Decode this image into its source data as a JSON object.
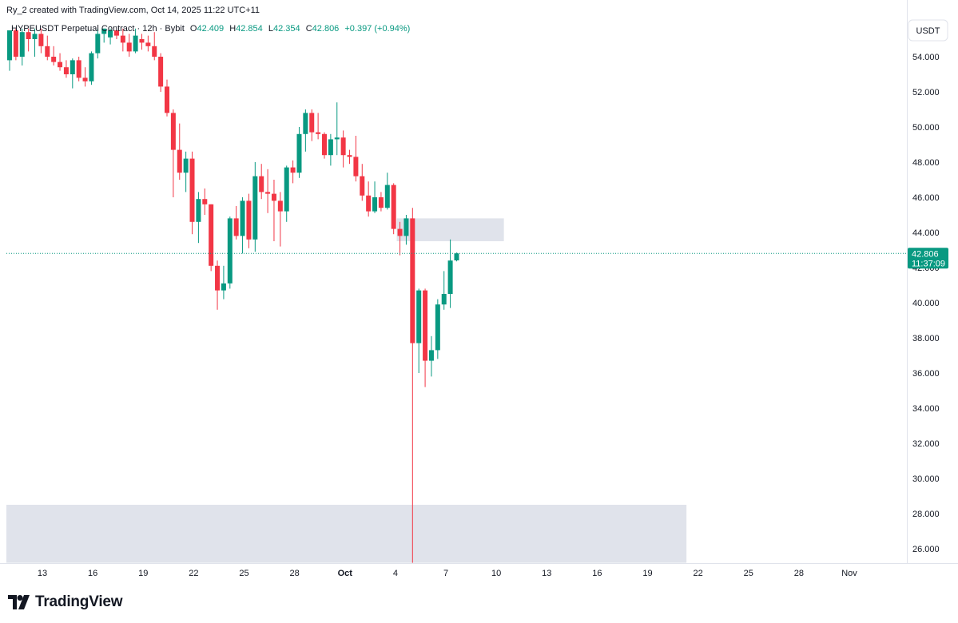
{
  "created_line": "Ry_2 created with TradingView.com, Oct 14, 2025 11:22 UTC+11",
  "legend": {
    "symbol": "HYPEUSDT Perpetual Contract · 12h · Bybit",
    "o_label": "O",
    "o": "42.409",
    "h_label": "H",
    "h": "42.854",
    "l_label": "L",
    "l": "42.354",
    "c_label": "C",
    "c": "42.806",
    "change": "+0.397 (+0.94%)"
  },
  "currency_button": "USDT",
  "price_tag": {
    "price": "42.806",
    "countdown": "11:37:09"
  },
  "brand": "TradingView",
  "colors": {
    "up": "#089981",
    "down": "#f23645",
    "zone": "#e0e3eb",
    "last_line": "#089981"
  },
  "chart_data": {
    "type": "candlestick",
    "timeframe": "12h",
    "yrange": [
      25,
      55.5
    ],
    "y_ticks": [
      "54.000",
      "52.000",
      "50.000",
      "48.000",
      "46.000",
      "44.000",
      "42.000",
      "40.000",
      "38.000",
      "36.000",
      "34.000",
      "32.000",
      "30.000",
      "28.000",
      "26.000"
    ],
    "x_labels": [
      "13",
      "16",
      "19",
      "22",
      "25",
      "28",
      "Oct",
      "4",
      "7",
      "10",
      "13",
      "16",
      "19",
      "22",
      "25",
      "28",
      "Nov"
    ],
    "last_price": 42.806,
    "zones": [
      {
        "x_start_index": 62,
        "x_end_index": 78,
        "low": 43.5,
        "high": 44.8
      },
      {
        "x_start_index": 0,
        "x_end_index": 107,
        "low": 25.2,
        "high": 28.5
      }
    ],
    "candles": [
      {
        "o": 53.8,
        "h": 55.5,
        "l": 53.2,
        "c": 55.5
      },
      {
        "o": 55.5,
        "h": 55.6,
        "l": 53.8,
        "c": 54.0
      },
      {
        "o": 54.0,
        "h": 55.6,
        "l": 53.5,
        "c": 55.4
      },
      {
        "o": 55.4,
        "h": 55.6,
        "l": 54.3,
        "c": 55.0
      },
      {
        "o": 55.0,
        "h": 55.6,
        "l": 54.0,
        "c": 55.3
      },
      {
        "o": 55.3,
        "h": 55.6,
        "l": 54.2,
        "c": 54.6
      },
      {
        "o": 54.6,
        "h": 55.2,
        "l": 53.8,
        "c": 54.0
      },
      {
        "o": 54.0,
        "h": 54.6,
        "l": 53.5,
        "c": 53.7
      },
      {
        "o": 53.7,
        "h": 54.2,
        "l": 53.2,
        "c": 53.4
      },
      {
        "o": 53.4,
        "h": 53.8,
        "l": 52.8,
        "c": 53.0
      },
      {
        "o": 53.0,
        "h": 53.9,
        "l": 52.2,
        "c": 53.8
      },
      {
        "o": 53.8,
        "h": 54.0,
        "l": 52.6,
        "c": 52.8
      },
      {
        "o": 52.8,
        "h": 53.4,
        "l": 52.3,
        "c": 52.6
      },
      {
        "o": 52.6,
        "h": 54.3,
        "l": 52.4,
        "c": 54.2
      },
      {
        "o": 54.2,
        "h": 55.6,
        "l": 53.9,
        "c": 55.3
      },
      {
        "o": 55.3,
        "h": 55.6,
        "l": 54.8,
        "c": 55.6
      },
      {
        "o": 55.1,
        "h": 55.6,
        "l": 54.7,
        "c": 55.5
      },
      {
        "o": 55.5,
        "h": 55.6,
        "l": 55.0,
        "c": 55.2
      },
      {
        "o": 55.2,
        "h": 55.6,
        "l": 54.3,
        "c": 54.8
      },
      {
        "o": 54.8,
        "h": 55.3,
        "l": 54.0,
        "c": 54.3
      },
      {
        "o": 54.3,
        "h": 55.6,
        "l": 54.2,
        "c": 55.2
      },
      {
        "o": 55.0,
        "h": 55.3,
        "l": 54.4,
        "c": 54.8
      },
      {
        "o": 54.8,
        "h": 55.2,
        "l": 54.3,
        "c": 54.6
      },
      {
        "o": 54.6,
        "h": 55.4,
        "l": 53.8,
        "c": 54.0
      },
      {
        "o": 54.0,
        "h": 54.2,
        "l": 52.0,
        "c": 52.3
      },
      {
        "o": 52.3,
        "h": 52.7,
        "l": 50.6,
        "c": 50.8
      },
      {
        "o": 50.8,
        "h": 51.0,
        "l": 46.0,
        "c": 48.7
      },
      {
        "o": 48.7,
        "h": 50.2,
        "l": 47.0,
        "c": 47.4
      },
      {
        "o": 47.4,
        "h": 48.6,
        "l": 46.3,
        "c": 48.2
      },
      {
        "o": 48.2,
        "h": 48.6,
        "l": 43.9,
        "c": 44.6
      },
      {
        "o": 44.6,
        "h": 46.3,
        "l": 43.4,
        "c": 45.9
      },
      {
        "o": 45.9,
        "h": 46.5,
        "l": 45.0,
        "c": 45.6
      },
      {
        "o": 45.6,
        "h": 45.6,
        "l": 41.8,
        "c": 42.1
      },
      {
        "o": 42.1,
        "h": 42.4,
        "l": 39.6,
        "c": 40.7
      },
      {
        "o": 40.7,
        "h": 42.1,
        "l": 40.2,
        "c": 41.1
      },
      {
        "o": 41.1,
        "h": 44.9,
        "l": 40.8,
        "c": 44.8
      },
      {
        "o": 44.8,
        "h": 45.5,
        "l": 43.6,
        "c": 43.8
      },
      {
        "o": 43.8,
        "h": 46.0,
        "l": 42.8,
        "c": 45.8
      },
      {
        "o": 45.8,
        "h": 46.2,
        "l": 43.1,
        "c": 43.6
      },
      {
        "o": 43.6,
        "h": 48.0,
        "l": 42.9,
        "c": 47.2
      },
      {
        "o": 47.2,
        "h": 47.9,
        "l": 45.9,
        "c": 46.3
      },
      {
        "o": 46.3,
        "h": 47.6,
        "l": 45.1,
        "c": 46.2
      },
      {
        "o": 46.2,
        "h": 47.0,
        "l": 43.5,
        "c": 45.8
      },
      {
        "o": 45.8,
        "h": 46.3,
        "l": 43.2,
        "c": 45.2
      },
      {
        "o": 45.2,
        "h": 47.8,
        "l": 44.6,
        "c": 47.7
      },
      {
        "o": 47.7,
        "h": 48.1,
        "l": 46.8,
        "c": 47.4
      },
      {
        "o": 47.4,
        "h": 50.0,
        "l": 47.1,
        "c": 49.6
      },
      {
        "o": 49.6,
        "h": 51.0,
        "l": 48.6,
        "c": 50.8
      },
      {
        "o": 50.8,
        "h": 51.0,
        "l": 49.2,
        "c": 49.7
      },
      {
        "o": 49.7,
        "h": 50.8,
        "l": 49.3,
        "c": 49.6
      },
      {
        "o": 49.6,
        "h": 49.7,
        "l": 48.2,
        "c": 48.4
      },
      {
        "o": 48.4,
        "h": 49.6,
        "l": 47.8,
        "c": 49.3
      },
      {
        "o": 49.3,
        "h": 51.4,
        "l": 48.4,
        "c": 49.4
      },
      {
        "o": 49.4,
        "h": 49.8,
        "l": 47.7,
        "c": 48.4
      },
      {
        "o": 48.4,
        "h": 48.7,
        "l": 47.9,
        "c": 48.3
      },
      {
        "o": 48.3,
        "h": 49.5,
        "l": 46.9,
        "c": 47.2
      },
      {
        "o": 47.2,
        "h": 47.9,
        "l": 45.8,
        "c": 46.1
      },
      {
        "o": 46.1,
        "h": 46.9,
        "l": 44.9,
        "c": 45.2
      },
      {
        "o": 45.2,
        "h": 46.9,
        "l": 45.1,
        "c": 46.0
      },
      {
        "o": 46.0,
        "h": 46.3,
        "l": 45.2,
        "c": 45.4
      },
      {
        "o": 45.4,
        "h": 47.4,
        "l": 45.3,
        "c": 46.7
      },
      {
        "o": 46.7,
        "h": 46.8,
        "l": 43.9,
        "c": 44.2
      },
      {
        "o": 44.2,
        "h": 44.6,
        "l": 42.7,
        "c": 43.8
      },
      {
        "o": 43.8,
        "h": 45.0,
        "l": 43.3,
        "c": 44.8
      },
      {
        "o": 44.8,
        "h": 45.4,
        "l": 25.2,
        "c": 37.7
      },
      {
        "o": 37.7,
        "h": 40.8,
        "l": 36.0,
        "c": 40.7
      },
      {
        "o": 40.7,
        "h": 40.8,
        "l": 35.2,
        "c": 36.7
      },
      {
        "o": 36.7,
        "h": 38.1,
        "l": 35.8,
        "c": 37.3
      },
      {
        "o": 37.3,
        "h": 40.2,
        "l": 36.8,
        "c": 39.9
      },
      {
        "o": 39.9,
        "h": 41.8,
        "l": 39.6,
        "c": 40.5
      },
      {
        "o": 40.5,
        "h": 43.6,
        "l": 39.7,
        "c": 42.4
      },
      {
        "o": 42.409,
        "h": 42.854,
        "l": 42.354,
        "c": 42.806
      }
    ]
  }
}
